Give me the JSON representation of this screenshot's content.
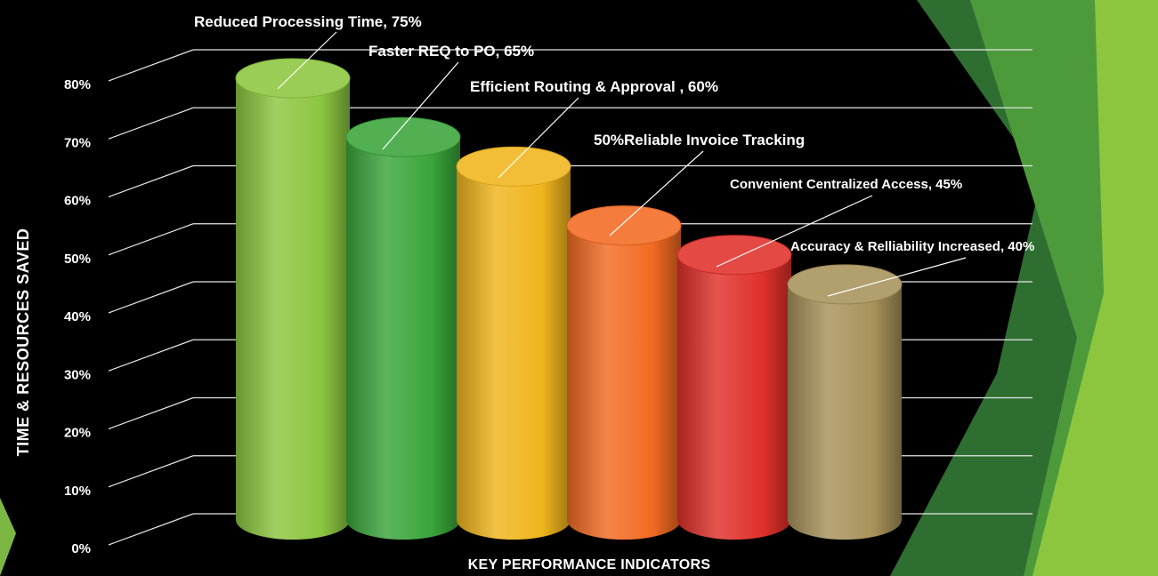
{
  "colors": {
    "background": "#000000",
    "gridline": "#e6e6e6",
    "text": "#ffffff",
    "decor_light_green": "#8cc63f",
    "decor_dark_green": "#3f8a3a"
  },
  "chart_data": {
    "type": "bar",
    "style": "3d-cylinder",
    "title": "",
    "xlabel": "KEY PERFORMANCE  INDICATORS",
    "ylabel": "TIME & RESOURCES SAVED",
    "ylim": [
      0,
      80
    ],
    "yticks": [
      "0%",
      "10%",
      "20%",
      "30%",
      "40%",
      "50%",
      "60%",
      "70%",
      "80%"
    ],
    "grid": true,
    "legend": "none",
    "bars": [
      {
        "label": "Reduced Processing Time, 75%",
        "value": 75,
        "color": "#8cc63f"
      },
      {
        "label": "Faster REQ to  PO, 65%",
        "value": 65,
        "color": "#3aa53a"
      },
      {
        "label": "Efficient Routing & Approval , 60%",
        "value": 60,
        "color": "#f0b51c"
      },
      {
        "label": "50%Reliable Invoice Tracking",
        "value": 50,
        "color": "#f26a22"
      },
      {
        "label": "Convenient Centralized Access, 45%",
        "value": 45,
        "color": "#e0302a"
      },
      {
        "label": "Accuracy & Relliability  Increased, 40%",
        "value": 40,
        "color": "#a8925a"
      }
    ]
  }
}
